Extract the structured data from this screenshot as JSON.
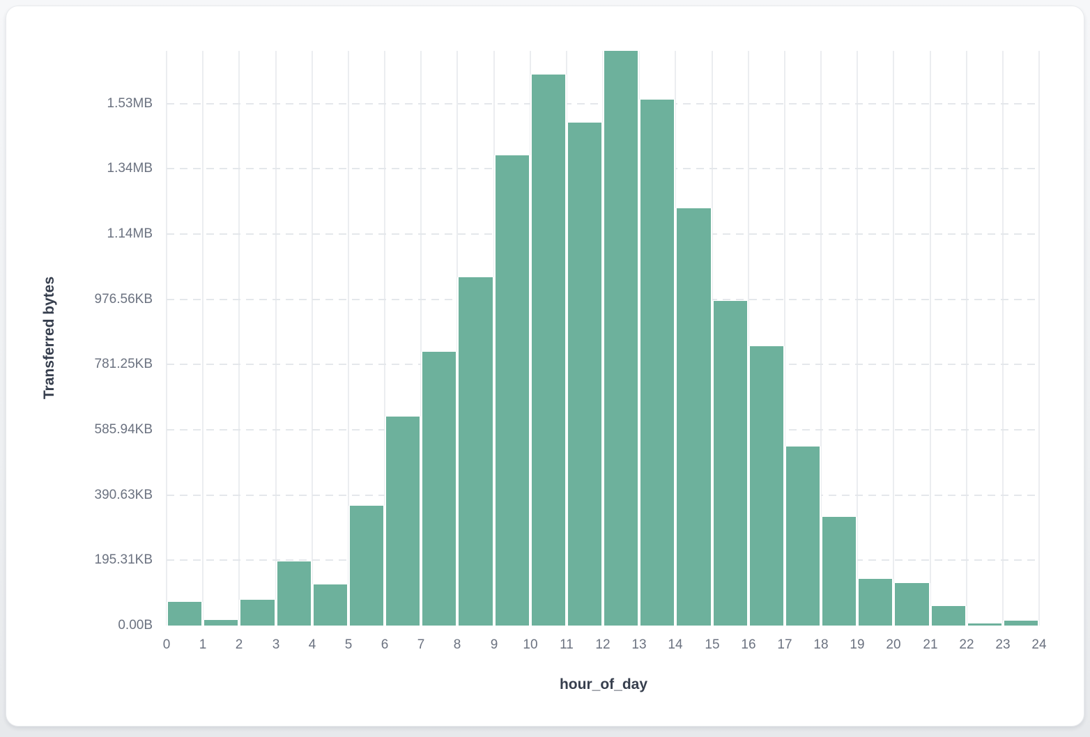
{
  "window": {
    "background": "#f1f2f4"
  },
  "card": {
    "background": "#ffffff",
    "border_color": "#e8eaed"
  },
  "chart_data": {
    "type": "bar",
    "subtype": "histogram",
    "title": "",
    "xlabel": "hour_of_day",
    "ylabel": "Transferred bytes",
    "categories": [
      0,
      1,
      2,
      3,
      4,
      5,
      6,
      7,
      8,
      9,
      10,
      11,
      12,
      13,
      14,
      15,
      16,
      17,
      18,
      19,
      20,
      21,
      22,
      23
    ],
    "values": [
      73000,
      17000,
      79000,
      196000,
      126000,
      367000,
      641000,
      839000,
      1068000,
      1442000,
      1690000,
      1542000,
      1762000,
      1613000,
      1280000,
      995000,
      856000,
      549000,
      333000,
      143000,
      130000,
      60000,
      6000,
      15000
    ],
    "value_unit": "bytes",
    "bin_width": 1,
    "xlim": [
      0,
      24
    ],
    "ylim": [
      0,
      1762000
    ],
    "x_tick_labels": [
      "0",
      "1",
      "2",
      "3",
      "4",
      "5",
      "6",
      "7",
      "8",
      "9",
      "10",
      "11",
      "12",
      "13",
      "14",
      "15",
      "16",
      "17",
      "18",
      "19",
      "20",
      "21",
      "22",
      "23",
      "24"
    ],
    "y_ticks": [
      {
        "value": 0,
        "label": "0.00B"
      },
      {
        "value": 200000,
        "label": "195.31KB"
      },
      {
        "value": 400000,
        "label": "390.63KB"
      },
      {
        "value": 600000,
        "label": "585.94KB"
      },
      {
        "value": 800000,
        "label": "781.25KB"
      },
      {
        "value": 1000000,
        "label": "976.56KB"
      },
      {
        "value": 1200000,
        "label": "1.14MB"
      },
      {
        "value": 1400000,
        "label": "1.34MB"
      },
      {
        "value": 1600000,
        "label": "1.53MB"
      }
    ],
    "grid": "on",
    "legend": "none",
    "colors": {
      "bar": "#6db19c",
      "bar_stroke": "#ffffff",
      "grid_vertical": "#ebedf0",
      "grid_horizontal_dash": "#e4e7eb",
      "tick_label": "#6b7280",
      "axis_title": "#363e4d"
    }
  }
}
